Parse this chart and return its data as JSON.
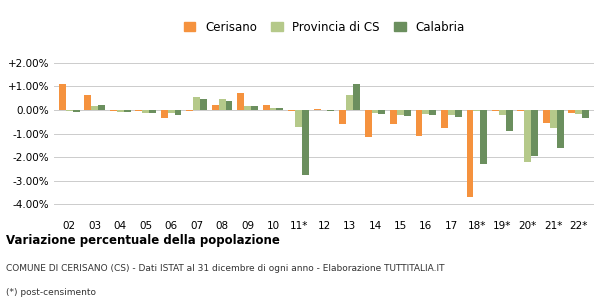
{
  "years": [
    "02",
    "03",
    "04",
    "05",
    "06",
    "07",
    "08",
    "09",
    "10",
    "11*",
    "12",
    "13",
    "14",
    "15",
    "16",
    "17",
    "18*",
    "19*",
    "20*",
    "21*",
    "22*"
  ],
  "cerisano": [
    1.12,
    0.65,
    -0.05,
    -0.05,
    -0.35,
    -0.05,
    0.22,
    0.72,
    0.22,
    -0.05,
    0.06,
    -0.6,
    -1.13,
    -0.6,
    -1.1,
    -0.75,
    -3.7,
    -0.05,
    -0.05,
    -0.55,
    -0.15
  ],
  "provincia": [
    -0.05,
    0.18,
    -0.1,
    -0.12,
    -0.15,
    0.55,
    0.45,
    0.18,
    0.08,
    -0.72,
    -0.02,
    0.65,
    -0.12,
    -0.22,
    -0.18,
    -0.22,
    -0.05,
    -0.22,
    -2.22,
    -0.78,
    -0.18
  ],
  "calabria": [
    -0.08,
    0.2,
    -0.08,
    -0.12,
    -0.2,
    0.48,
    0.4,
    0.15,
    0.1,
    -2.75,
    -0.05,
    1.08,
    -0.18,
    -0.25,
    -0.22,
    -0.28,
    -2.3,
    -0.9,
    -1.95,
    -1.6,
    -0.35
  ],
  "cerisano_color": "#f5923e",
  "provincia_color": "#b5c98a",
  "calabria_color": "#6b8f5e",
  "background_color": "#ffffff",
  "grid_color": "#cccccc",
  "title": "Variazione percentuale della popolazione",
  "subtitle": "COMUNE DI CERISANO (CS) - Dati ISTAT al 31 dicembre di ogni anno - Elaborazione TUTTITALIA.IT",
  "footnote": "(*) post-censimento",
  "ylim": [
    -4.5,
    2.5
  ],
  "yticks": [
    -4.0,
    -3.0,
    -2.0,
    -1.0,
    0.0,
    1.0,
    2.0
  ],
  "ytick_labels": [
    "-4.00%",
    "-3.00%",
    "-2.00%",
    "-1.00%",
    "0.00%",
    "+1.00%",
    "+2.00%"
  ]
}
